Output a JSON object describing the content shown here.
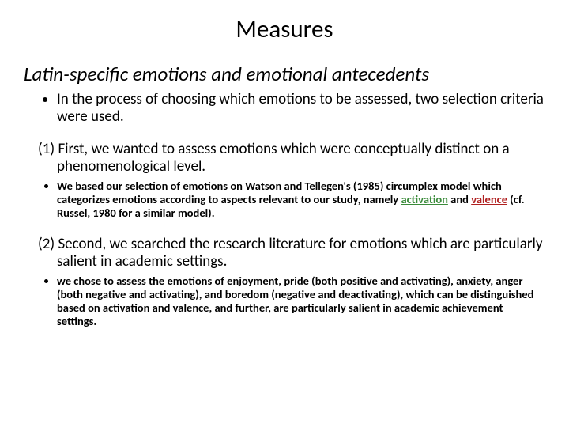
{
  "title": "Measures",
  "subtitle": "Latin-specific emotions and emotional antecedents",
  "intro_bullet": "In the process of choosing which emotions to be assessed, two selection criteria were used.",
  "point1": "(1) First, we wanted to assess emotions which were conceptually distinct on a phenomenological level.",
  "sub1_a": "We based our ",
  "sub1_u": "selection of emotions",
  "sub1_b": " on Watson and Tellegen's (1985) ",
  "sub1_c": "circumplex model",
  "sub1_d": " which categorizes emotions according to aspects relevant to our study, namely ",
  "sub1_green": "activation",
  "sub1_e": " and ",
  "sub1_red": "valence",
  "sub1_f": " (cf. Russel, 1980 for a similar model).",
  "point2": "(2) Second, we searched the research literature for emotions which are particularly salient in academic settings.",
  "sub2_a": "we chose to assess the emotions of ",
  "sub2_b": "enjoyment, pride",
  "sub2_c": " (both positive and activating), ",
  "sub2_d": "anxiety, anger",
  "sub2_e": " (both negative and activating), and ",
  "sub2_f": "boredom",
  "sub2_g": " (negative and deactivating), which can be distinguished based on activation and valence, and further, are particularly salient in academic achievement settings.",
  "colors": {
    "text": "#000000",
    "background": "#ffffff",
    "green": "#3b8b3b",
    "red": "#b02020"
  },
  "fontsizes": {
    "title": 31,
    "subtitle": 25,
    "body": 19,
    "sub": 14.5
  }
}
